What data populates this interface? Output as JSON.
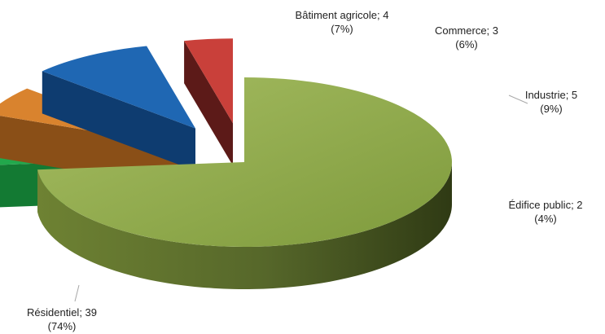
{
  "chart_data": {
    "type": "pie",
    "style": "3d-exploded",
    "title": "",
    "slices": [
      {
        "label": "Résidentiel",
        "value": 39,
        "percent": "74%",
        "color": "#8FA84A",
        "side_color": "#5E6F2B"
      },
      {
        "label": "Bâtiment agricole",
        "value": 4,
        "percent": "7%",
        "color": "#22A84C",
        "side_color": "#137A33"
      },
      {
        "label": "Commerce",
        "value": 3,
        "percent": "6%",
        "color": "#D9832E",
        "side_color": "#8A4F17"
      },
      {
        "label": "Industrie",
        "value": 5,
        "percent": "9%",
        "color": "#1F67B3",
        "side_color": "#0E3C70"
      },
      {
        "label": "Édifice public",
        "value": 2,
        "percent": "4%",
        "color": "#C9403A",
        "side_color": "#5C1A18"
      }
    ]
  }
}
